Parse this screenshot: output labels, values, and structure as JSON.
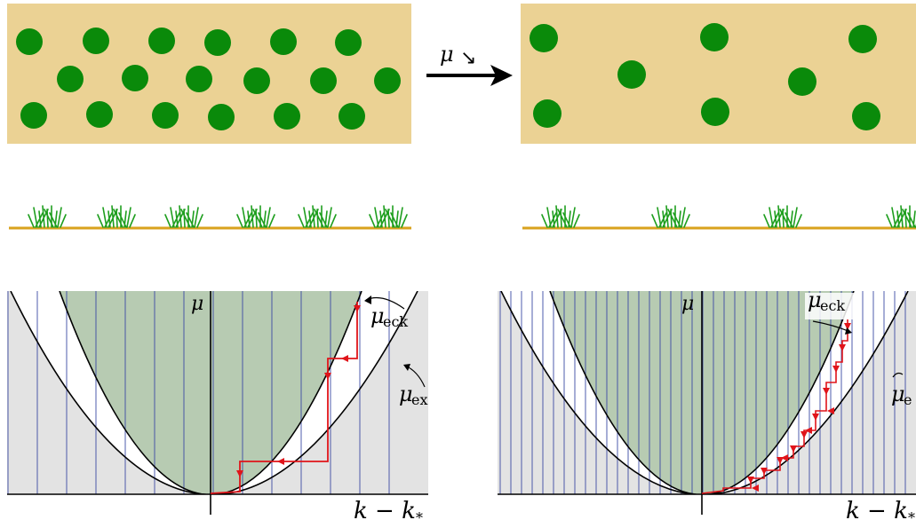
{
  "arrow_label": "μ",
  "arrow_label_sub": "↘",
  "left_plot": {
    "y_label": "μ",
    "x_label": "k − k",
    "x_label_sub": "*",
    "eck_label": "μ",
    "eck_sub": "eck",
    "ex_label": "μ",
    "ex_sub": "ex"
  },
  "right_plot": {
    "y_label": "μ",
    "x_label": "k − k",
    "x_label_sub": "*",
    "eck_label": "μ",
    "eck_sub": "eck",
    "ex_label": "μ",
    "ex_sub": "e"
  },
  "colors": {
    "sand": "#ebd294",
    "spot": "#0a8a0a",
    "ground": "#d9a21e",
    "grass": "#1e9e1e",
    "outer_region": "#e3e3e3",
    "inner_region": "#b7cbb2",
    "grid_line": "#3b4aa3",
    "path": "#e0141a"
  }
}
